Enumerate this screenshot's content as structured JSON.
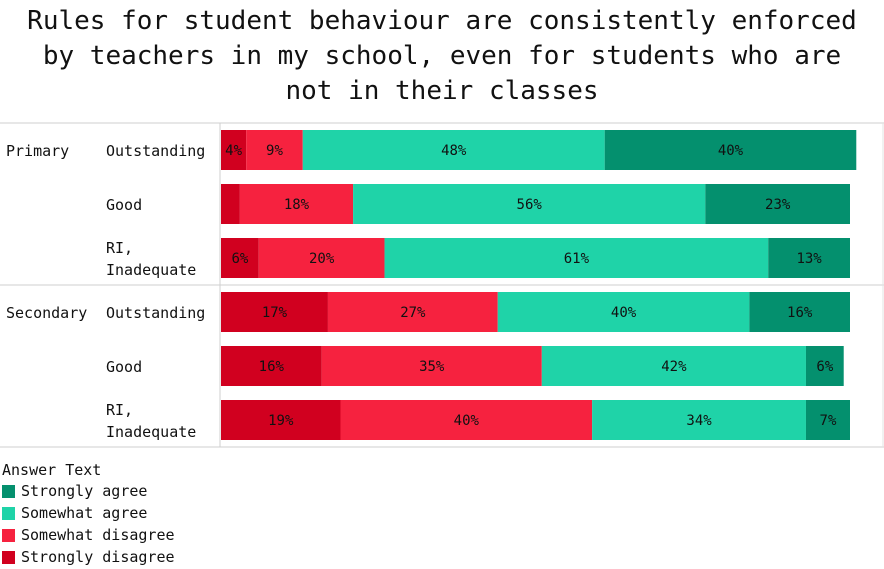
{
  "title": "Rules for student behaviour are consistently enforced\nby teachers in my school, even for students who are\nnot in their classes",
  "legend": {
    "title": "Answer Text",
    "items": [
      {
        "label": "Strongly agree",
        "color": "#04906e"
      },
      {
        "label": "Somewhat agree",
        "color": "#1fd3a8"
      },
      {
        "label": "Somewhat disagree",
        "color": "#f6223f"
      },
      {
        "label": "Strongly disagree",
        "color": "#d1001f"
      }
    ]
  },
  "chart_data": {
    "type": "bar",
    "orientation": "horizontal",
    "stacked": "100%",
    "groups": [
      "Primary",
      "Secondary"
    ],
    "categories": [
      "Outstanding",
      "Good",
      "RI,\nInadequate",
      "Outstanding",
      "Good",
      "RI,\nInadequate"
    ],
    "category_group": [
      "Primary",
      "Primary",
      "Primary",
      "Secondary",
      "Secondary",
      "Secondary"
    ],
    "series": [
      {
        "name": "Strongly disagree",
        "color": "#d1001f",
        "values": [
          4,
          3,
          6,
          17,
          16,
          19
        ],
        "labels": [
          "4%",
          "",
          "6%",
          "17%",
          "16%",
          "19%"
        ]
      },
      {
        "name": "Somewhat disagree",
        "color": "#f6223f",
        "values": [
          9,
          18,
          20,
          27,
          35,
          40
        ],
        "labels": [
          "9%",
          "18%",
          "20%",
          "27%",
          "35%",
          "40%"
        ]
      },
      {
        "name": "Somewhat agree",
        "color": "#1fd3a8",
        "values": [
          48,
          56,
          61,
          40,
          42,
          34
        ],
        "labels": [
          "48%",
          "56%",
          "61%",
          "40%",
          "42%",
          "34%"
        ]
      },
      {
        "name": "Strongly agree",
        "color": "#04906e",
        "values": [
          40,
          23,
          13,
          16,
          6,
          7
        ],
        "labels": [
          "40%",
          "23%",
          "13%",
          "16%",
          "6%",
          "7%"
        ]
      }
    ],
    "xlim": [
      0,
      100
    ],
    "legend_position": "bottom-left"
  }
}
